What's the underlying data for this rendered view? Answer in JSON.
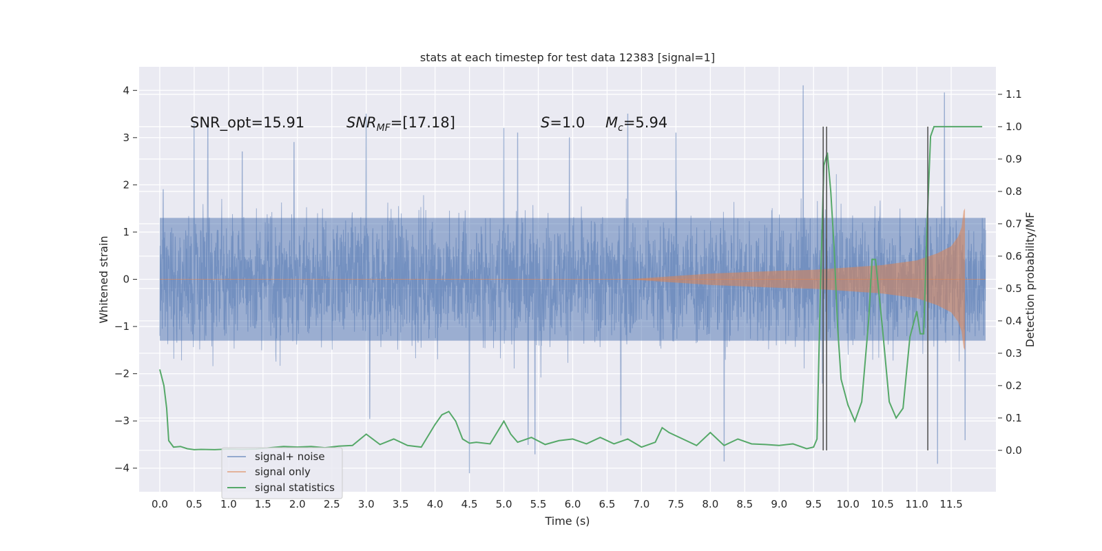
{
  "chart_data": {
    "type": "line",
    "title": "stats at each timestep for test data 12383 [signal=1]",
    "xlabel": "Time (s)",
    "ylabel": "Whitened strain",
    "y2label": "Detection probability/MF",
    "xlim": [
      -0.3,
      12.15
    ],
    "ylim": [
      -4.5,
      4.5
    ],
    "y2lim": [
      -0.128,
      1.185
    ],
    "x_ticks": [
      "0.0",
      "0.5",
      "1.0",
      "1.5",
      "2.0",
      "2.5",
      "3.0",
      "3.5",
      "4.0",
      "4.5",
      "5.0",
      "5.5",
      "6.0",
      "6.5",
      "7.0",
      "7.5",
      "8.0",
      "8.5",
      "9.0",
      "9.5",
      "10.0",
      "10.5",
      "11.0",
      "11.5"
    ],
    "y_ticks": [
      "4",
      "3",
      "2",
      "1",
      "0",
      "−1",
      "−2",
      "−3",
      "−4"
    ],
    "y2_ticks": [
      "1.1",
      "1.0",
      "0.9",
      "0.8",
      "0.7",
      "0.6",
      "0.5",
      "0.4",
      "0.3",
      "0.2",
      "0.1",
      "0.0"
    ],
    "grid": true,
    "legend_position": "lower-left",
    "annotations": {
      "snr_opt": "SNR_opt=15.91",
      "snr_mf_main": "SNR",
      "snr_mf_sub": "MF",
      "snr_mf_value": "=[17.18]",
      "s_main": "S",
      "s_value": "=1.0",
      "mc_main": "M",
      "mc_sub": "c",
      "mc_value": "=5.94"
    },
    "vertical_markers_x": [
      9.64,
      9.69,
      11.16
    ],
    "series": [
      {
        "name": "signal+ noise",
        "color": "#4c72b0",
        "description_values": {
          "x_start": 0.0,
          "x_end": 12.0,
          "core_band": [
            -1.3,
            1.3
          ],
          "peak_spikes": [
            [
              0.05,
              1.9
            ],
            [
              0.5,
              3.3
            ],
            [
              0.7,
              3.4
            ],
            [
              1.2,
              2.7
            ],
            [
              1.95,
              2.9
            ],
            [
              3.0,
              3.5
            ],
            [
              3.05,
              -2.95
            ],
            [
              4.5,
              -4.1
            ],
            [
              5.0,
              3.2
            ],
            [
              5.2,
              3.1
            ],
            [
              5.35,
              -3.5
            ],
            [
              5.45,
              -3.7
            ],
            [
              5.95,
              3.0
            ],
            [
              6.7,
              -3.3
            ],
            [
              6.8,
              3.5
            ],
            [
              7.5,
              3.1
            ],
            [
              8.2,
              -3.85
            ],
            [
              9.35,
              4.1
            ],
            [
              9.63,
              -2.2
            ],
            [
              11.3,
              -3.9
            ],
            [
              11.4,
              3.95
            ],
            [
              11.7,
              -3.4
            ]
          ]
        }
      },
      {
        "name": "signal only",
        "color": "#dd8452",
        "envelope": {
          "x": [
            6.8,
            8.0,
            9.0,
            9.5,
            10.0,
            10.5,
            11.0,
            11.3,
            11.5,
            11.6,
            11.65,
            11.68,
            11.7
          ],
          "amplitude": [
            0.0,
            0.12,
            0.18,
            0.2,
            0.25,
            0.3,
            0.4,
            0.55,
            0.7,
            0.9,
            1.1,
            1.45,
            1.5
          ]
        }
      },
      {
        "name": "signal statistics",
        "color": "#55a868",
        "x": [
          0.0,
          0.06,
          0.1,
          0.13,
          0.2,
          0.3,
          0.4,
          0.5,
          0.6,
          0.8,
          1.0,
          1.2,
          1.4,
          1.6,
          1.8,
          2.0,
          2.2,
          2.4,
          2.6,
          2.8,
          3.0,
          3.2,
          3.4,
          3.6,
          3.8,
          4.0,
          4.1,
          4.2,
          4.3,
          4.4,
          4.5,
          4.6,
          4.8,
          5.0,
          5.1,
          5.2,
          5.4,
          5.6,
          5.8,
          6.0,
          6.2,
          6.4,
          6.6,
          6.8,
          7.0,
          7.2,
          7.3,
          7.4,
          7.6,
          7.8,
          8.0,
          8.2,
          8.4,
          8.6,
          8.8,
          9.0,
          9.2,
          9.4,
          9.5,
          9.55,
          9.6,
          9.65,
          9.7,
          9.75,
          9.8,
          9.85,
          9.9,
          10.0,
          10.1,
          10.2,
          10.3,
          10.35,
          10.4,
          10.5,
          10.6,
          10.7,
          10.8,
          10.9,
          11.0,
          11.05,
          11.1,
          11.15,
          11.2,
          11.25,
          11.3,
          11.6,
          11.95
        ],
        "values": [
          0.25,
          0.2,
          0.13,
          0.03,
          0.01,
          0.012,
          0.005,
          0.002,
          0.003,
          0.002,
          0.004,
          0.003,
          0.004,
          0.008,
          0.012,
          0.01,
          0.012,
          0.008,
          0.013,
          0.015,
          0.05,
          0.018,
          0.035,
          0.015,
          0.01,
          0.08,
          0.11,
          0.12,
          0.09,
          0.035,
          0.022,
          0.025,
          0.02,
          0.09,
          0.05,
          0.025,
          0.04,
          0.018,
          0.03,
          0.035,
          0.02,
          0.04,
          0.02,
          0.035,
          0.01,
          0.025,
          0.07,
          0.055,
          0.035,
          0.015,
          0.055,
          0.015,
          0.035,
          0.02,
          0.018,
          0.015,
          0.02,
          0.005,
          0.01,
          0.035,
          0.5,
          0.88,
          0.92,
          0.8,
          0.62,
          0.38,
          0.22,
          0.14,
          0.09,
          0.15,
          0.4,
          0.59,
          0.59,
          0.38,
          0.15,
          0.1,
          0.13,
          0.35,
          0.43,
          0.36,
          0.36,
          0.7,
          0.97,
          1.0,
          1.0,
          1.0,
          1.0
        ]
      }
    ]
  }
}
